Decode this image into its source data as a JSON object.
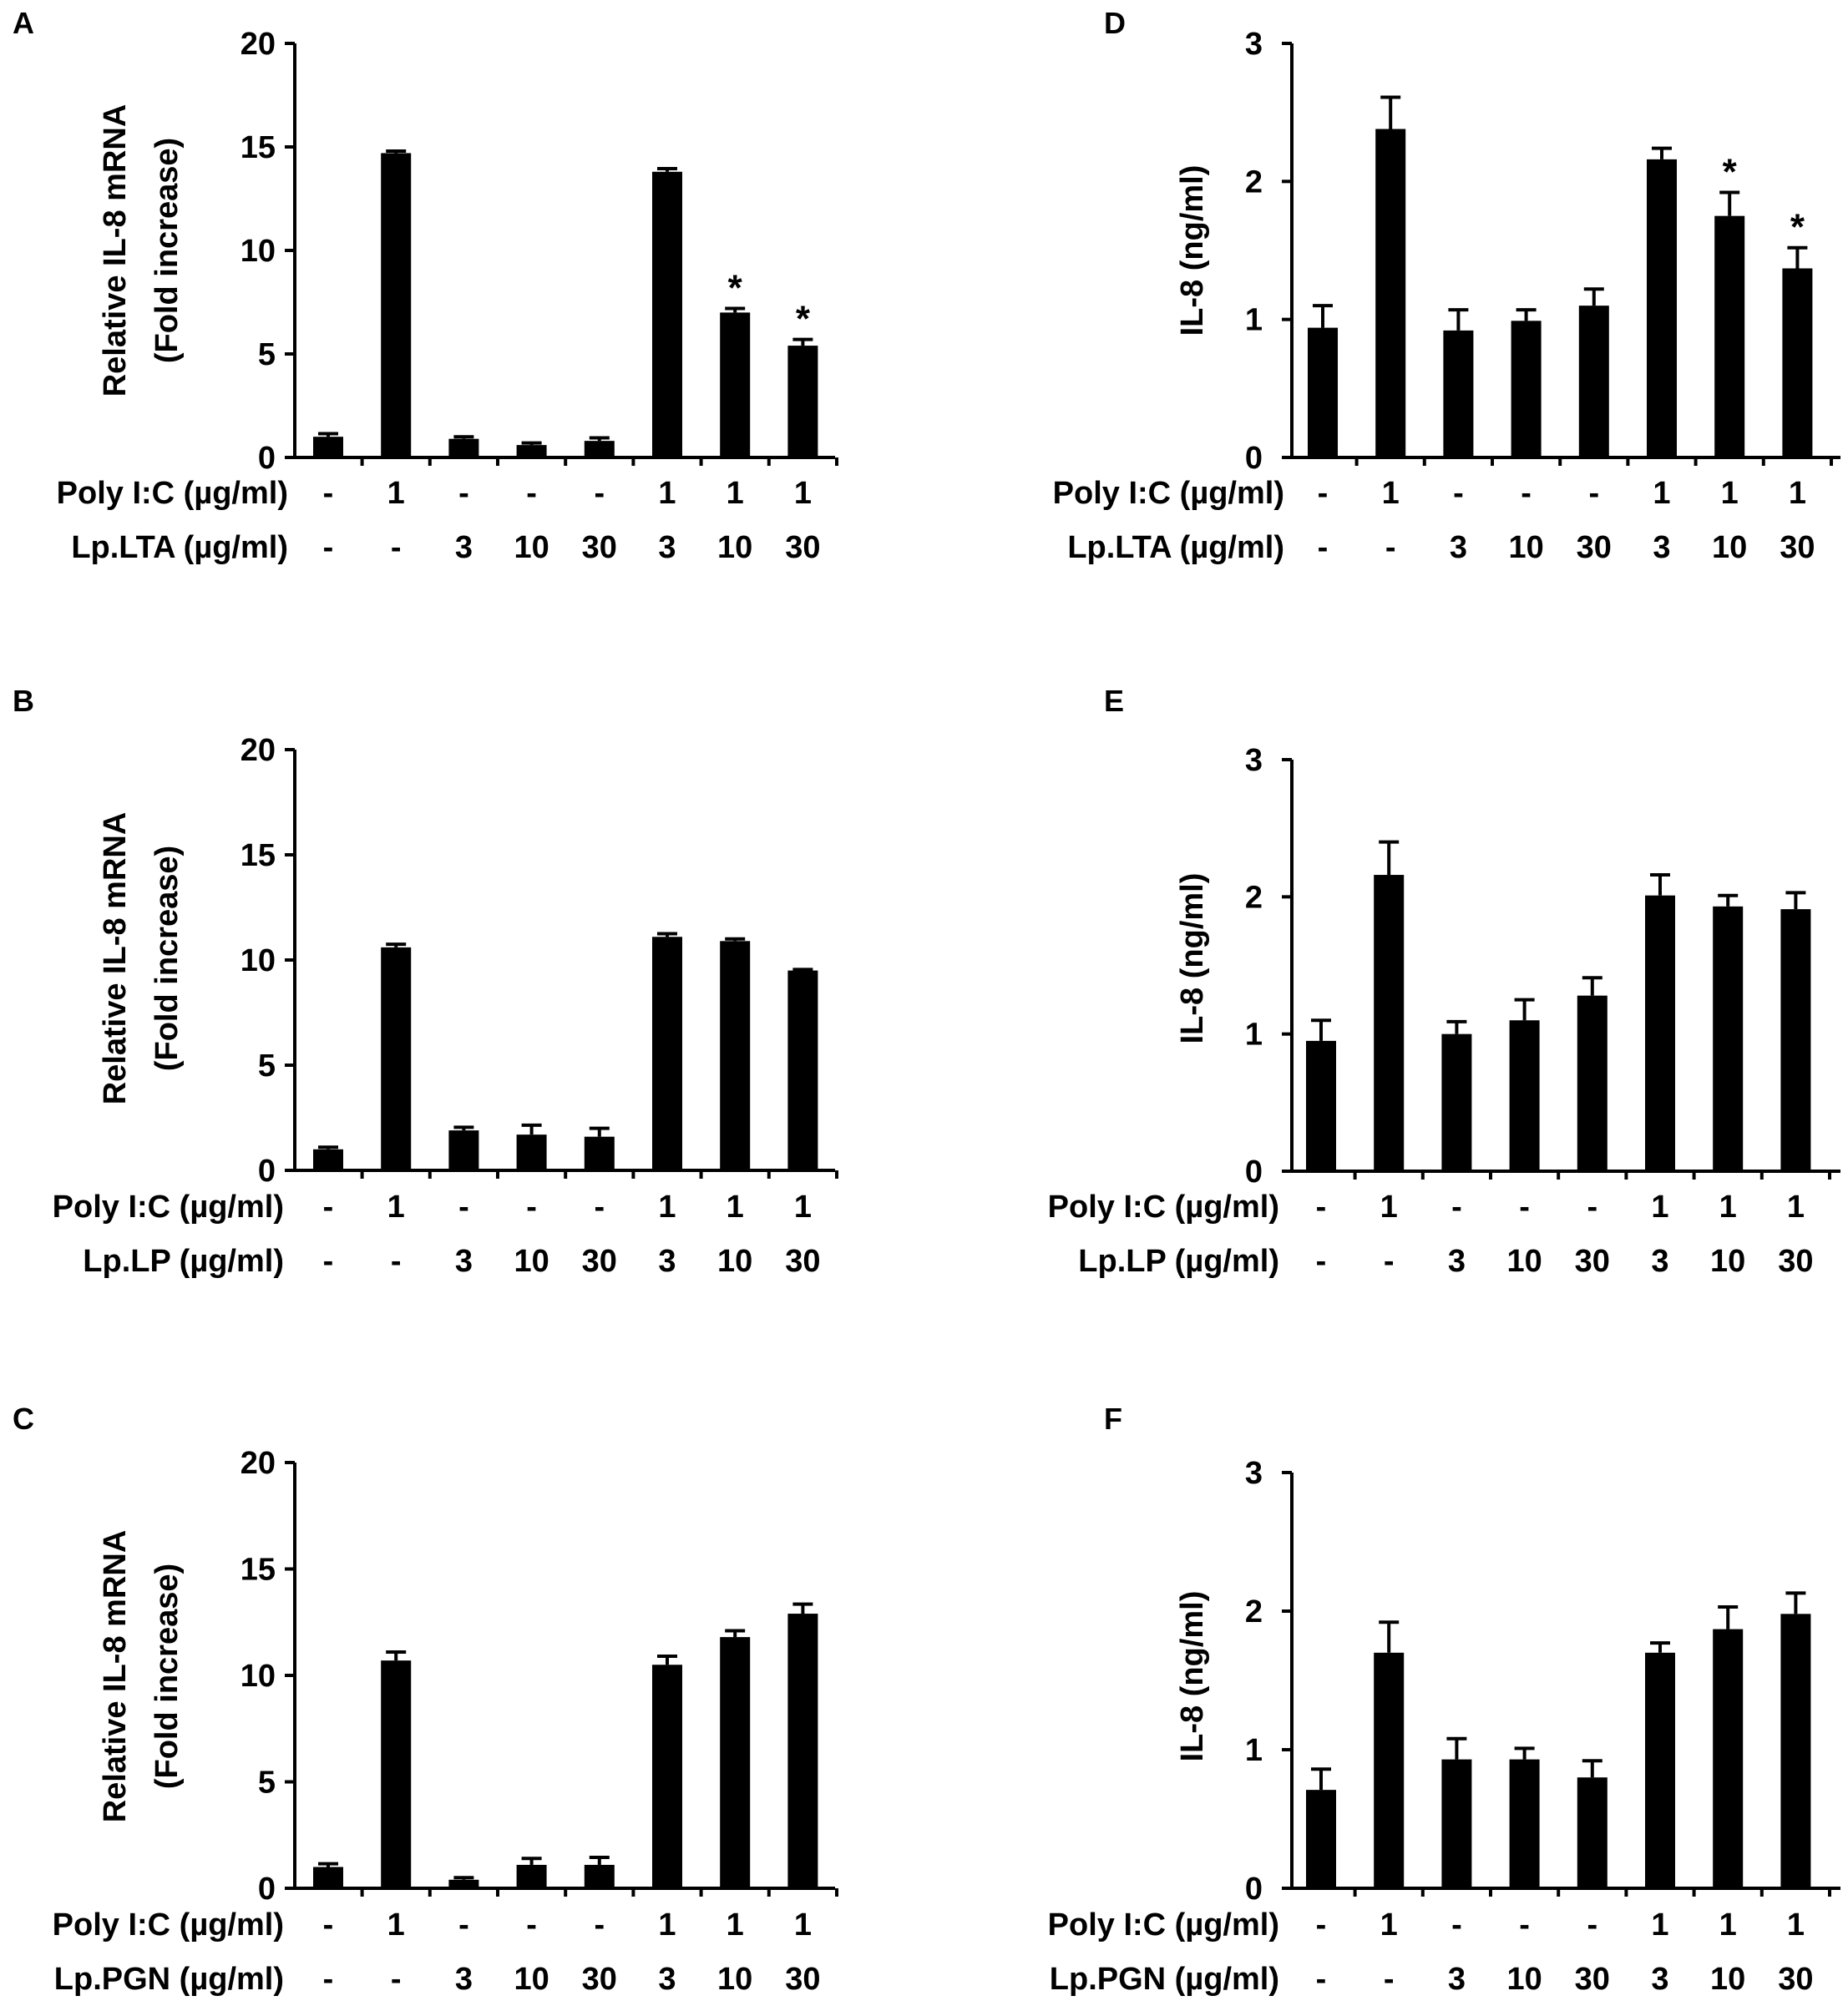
{
  "chart_data": [
    {
      "panel": "A",
      "type": "bar",
      "ylabel_line1": "Relative IL-8 mRNA",
      "ylabel_line2": "(Fold increase)",
      "ylim": [
        0,
        20
      ],
      "yticks": [
        "0",
        "5",
        "10",
        "15",
        "20"
      ],
      "ytick_values": [
        0,
        5,
        10,
        15,
        20
      ],
      "values": [
        1.0,
        14.7,
        0.9,
        0.6,
        0.8,
        13.8,
        7.0,
        5.4
      ],
      "errors": [
        0.15,
        0.1,
        0.1,
        0.1,
        0.15,
        0.15,
        0.2,
        0.3
      ],
      "significance": [
        "",
        "",
        "",
        "",
        "",
        "",
        "*",
        "*"
      ],
      "row1": {
        "label": "Poly I:C (µg/ml)",
        "values": [
          "-",
          "1",
          "-",
          "-",
          "-",
          "1",
          "1",
          "1"
        ]
      },
      "row2": {
        "label": "Lp.LTA (µg/ml)",
        "values": [
          "-",
          "-",
          "3",
          "10",
          "30",
          "3",
          "10",
          "30"
        ]
      }
    },
    {
      "panel": "B",
      "type": "bar",
      "ylabel_line1": "Relative IL-8 mRNA",
      "ylabel_line2": "(Fold increase)",
      "ylim": [
        0,
        20
      ],
      "yticks": [
        "0",
        "5",
        "10",
        "15",
        "20"
      ],
      "ytick_values": [
        0,
        5,
        10,
        15,
        20
      ],
      "values": [
        1.0,
        10.6,
        1.9,
        1.7,
        1.6,
        11.1,
        10.9,
        9.5
      ],
      "errors": [
        0.1,
        0.15,
        0.15,
        0.45,
        0.4,
        0.15,
        0.1,
        0.05
      ],
      "significance": [
        "",
        "",
        "",
        "",
        "",
        "",
        "",
        ""
      ],
      "row1": {
        "label": "Poly I:C (µg/ml)",
        "values": [
          "-",
          "1",
          "-",
          "-",
          "-",
          "1",
          "1",
          "1"
        ]
      },
      "row2": {
        "label": "Lp.LP (µg/ml)",
        "values": [
          "-",
          "-",
          "3",
          "10",
          "30",
          "3",
          "10",
          "30"
        ]
      }
    },
    {
      "panel": "C",
      "type": "bar",
      "ylabel_line1": "Relative IL-8 mRNA",
      "ylabel_line2": "(Fold increase)",
      "ylim": [
        0,
        20
      ],
      "yticks": [
        "0",
        "5",
        "10",
        "15",
        "20"
      ],
      "ytick_values": [
        0,
        5,
        10,
        15,
        20
      ],
      "values": [
        1.0,
        10.7,
        0.4,
        1.1,
        1.1,
        10.5,
        11.8,
        12.9
      ],
      "errors": [
        0.15,
        0.4,
        0.1,
        0.3,
        0.35,
        0.4,
        0.3,
        0.45
      ],
      "significance": [
        "",
        "",
        "",
        "",
        "",
        "",
        "",
        ""
      ],
      "row1": {
        "label": "Poly I:C (µg/ml)",
        "values": [
          "-",
          "1",
          "-",
          "-",
          "-",
          "1",
          "1",
          "1"
        ]
      },
      "row2": {
        "label": "Lp.PGN (µg/ml)",
        "values": [
          "-",
          "-",
          "3",
          "10",
          "30",
          "3",
          "10",
          "30"
        ]
      }
    },
    {
      "panel": "D",
      "type": "bar",
      "ylabel_line1": "IL-8 (ng/ml)",
      "ylabel_line2": "",
      "ylim": [
        0,
        3
      ],
      "yticks": [
        "0",
        "1",
        "2",
        "3"
      ],
      "ytick_values": [
        0,
        1,
        2,
        3
      ],
      "values": [
        0.94,
        2.38,
        0.92,
        0.99,
        1.1,
        2.16,
        1.75,
        1.37
      ],
      "errors": [
        0.16,
        0.23,
        0.15,
        0.08,
        0.12,
        0.08,
        0.17,
        0.15
      ],
      "significance": [
        "",
        "",
        "",
        "",
        "",
        "",
        "*",
        "*"
      ],
      "row1": {
        "label": "Poly I:C (µg/ml)",
        "values": [
          "-",
          "1",
          "-",
          "-",
          "-",
          "1",
          "1",
          "1"
        ]
      },
      "row2": {
        "label": "Lp.LTA (µg/ml)",
        "values": [
          "-",
          "-",
          "3",
          "10",
          "30",
          "3",
          "10",
          "30"
        ]
      }
    },
    {
      "panel": "E",
      "type": "bar",
      "ylabel_line1": "IL-8 (ng/ml)",
      "ylabel_line2": "",
      "ylim": [
        0,
        3
      ],
      "yticks": [
        "0",
        "1",
        "2",
        "3"
      ],
      "ytick_values": [
        0,
        1,
        2,
        3
      ],
      "values": [
        0.95,
        2.16,
        1.0,
        1.1,
        1.28,
        2.01,
        1.93,
        1.91
      ],
      "errors": [
        0.15,
        0.24,
        0.09,
        0.15,
        0.13,
        0.15,
        0.08,
        0.12
      ],
      "significance": [
        "",
        "",
        "",
        "",
        "",
        "",
        "",
        ""
      ],
      "row1": {
        "label": "Poly I:C (µg/ml)",
        "values": [
          "-",
          "1",
          "-",
          "-",
          "-",
          "1",
          "1",
          "1"
        ]
      },
      "row2": {
        "label": "Lp.LP (µg/ml)",
        "values": [
          "-",
          "-",
          "3",
          "10",
          "30",
          "3",
          "10",
          "30"
        ]
      }
    },
    {
      "panel": "F",
      "type": "bar",
      "ylabel_line1": "IL-8 (ng/ml)",
      "ylabel_line2": "",
      "ylim": [
        0,
        3
      ],
      "yticks": [
        "0",
        "1",
        "2",
        "3"
      ],
      "ytick_values": [
        0,
        1,
        2,
        3
      ],
      "values": [
        0.71,
        1.7,
        0.93,
        0.93,
        0.8,
        1.7,
        1.87,
        1.98
      ],
      "errors": [
        0.15,
        0.22,
        0.15,
        0.08,
        0.12,
        0.07,
        0.16,
        0.15
      ],
      "significance": [
        "",
        "",
        "",
        "",
        "",
        "",
        "",
        ""
      ],
      "row1": {
        "label": "Poly I:C (µg/ml)",
        "values": [
          "-",
          "1",
          "-",
          "-",
          "-",
          "1",
          "1",
          "1"
        ]
      },
      "row2": {
        "label": "Lp.PGN (µg/ml)",
        "values": [
          "-",
          "-",
          "3",
          "10",
          "30",
          "3",
          "10",
          "30"
        ]
      }
    }
  ]
}
